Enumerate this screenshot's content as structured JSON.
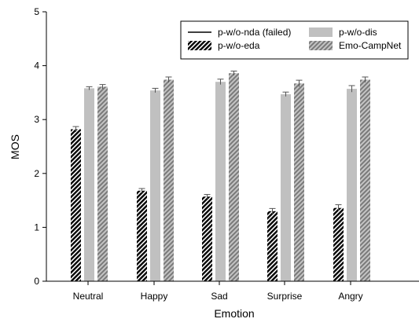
{
  "chart_data": {
    "type": "bar",
    "title": "",
    "xlabel": "Emotion",
    "ylabel": "MOS",
    "ylim": [
      0,
      5
    ],
    "yticks": [
      "0",
      "1",
      "2",
      "3",
      "4",
      "5"
    ],
    "categories": [
      "Neutral",
      "Happy",
      "Sad",
      "Surprise",
      "Angry"
    ],
    "grid": false,
    "legend_position": "top-right",
    "series": [
      {
        "name": "p-w/o-nda (failed)",
        "style": "line",
        "color": "#000000",
        "values": [
          0,
          0,
          0,
          0,
          0
        ],
        "errors": [
          0,
          0,
          0,
          0,
          0
        ]
      },
      {
        "name": "p-w/o-eda",
        "style": "hatch-dark",
        "color": "#000000",
        "values": [
          2.82,
          1.68,
          1.57,
          1.3,
          1.36
        ],
        "errors": [
          0.05,
          0.04,
          0.04,
          0.05,
          0.06
        ]
      },
      {
        "name": "p-w/o-dis",
        "style": "solid-gray",
        "color": "#c0c0c0",
        "values": [
          3.58,
          3.54,
          3.7,
          3.47,
          3.57
        ],
        "errors": [
          0.03,
          0.04,
          0.05,
          0.04,
          0.06
        ]
      },
      {
        "name": "Emo-CampNet",
        "style": "hatch-gray",
        "color": "#a0a0a0",
        "values": [
          3.61,
          3.74,
          3.86,
          3.67,
          3.74
        ],
        "errors": [
          0.04,
          0.05,
          0.04,
          0.06,
          0.05
        ]
      }
    ]
  }
}
